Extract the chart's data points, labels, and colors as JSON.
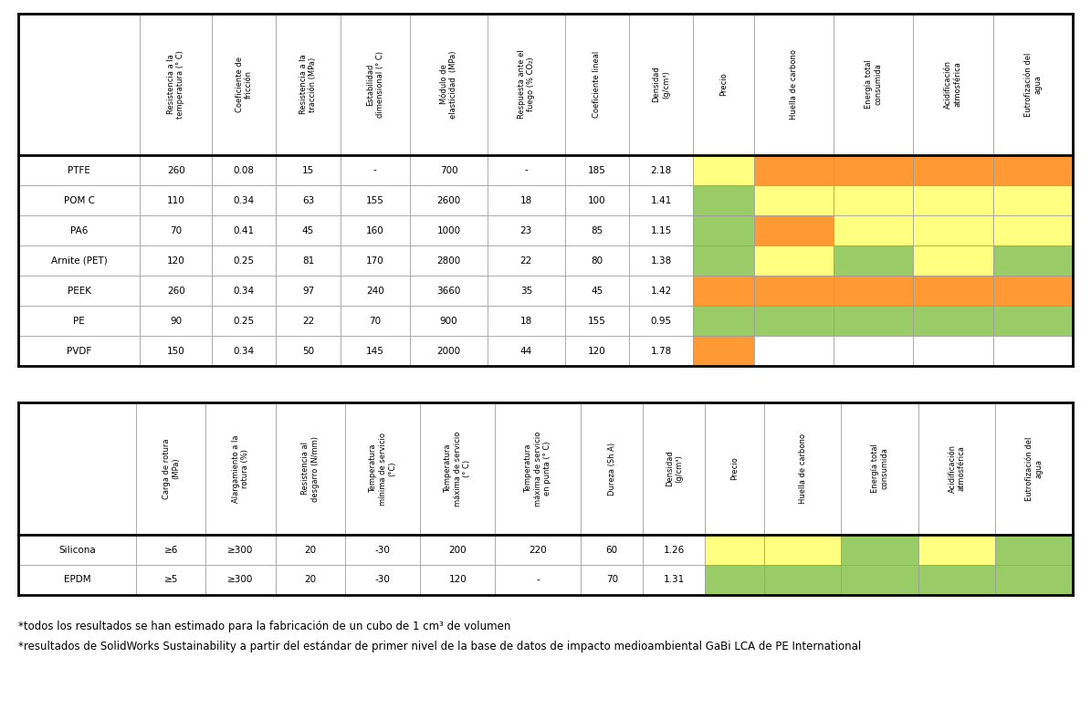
{
  "table1_headers": [
    "Resistencia a la\ntemperatura (° C)",
    "Coeficiente de\nfricción",
    "Resistencia a la\ntracción (MPa)",
    "Estabilidad\ndimensional (° C)",
    "Módulo de\nelasticidad  (MPa)",
    "Respuesta ante el\nfuego (% CO₂)",
    "Coeficiente lineal",
    "Densidad\n(g/cm³)",
    "Precio",
    "Huella de carbono",
    "Energía total\nconsumida",
    "Acidificación\natmosférica",
    "Eutrofización del\nagua"
  ],
  "table1_rows": [
    [
      "PTFE",
      "260",
      "0.08",
      "15",
      "-",
      "700",
      "-",
      "185",
      "2.18"
    ],
    [
      "POM C",
      "110",
      "0.34",
      "63",
      "155",
      "2600",
      "18",
      "100",
      "1.41"
    ],
    [
      "PA6",
      "70",
      "0.41",
      "45",
      "160",
      "1000",
      "23",
      "85",
      "1.15"
    ],
    [
      "Arnite (PET)",
      "120",
      "0.25",
      "81",
      "170",
      "2800",
      "22",
      "80",
      "1.38"
    ],
    [
      "PEEK",
      "260",
      "0.34",
      "97",
      "240",
      "3660",
      "35",
      "45",
      "1.42"
    ],
    [
      "PE",
      "90",
      "0.25",
      "22",
      "70",
      "900",
      "18",
      "155",
      "0.95"
    ],
    [
      "PVDF",
      "150",
      "0.34",
      "50",
      "145",
      "2000",
      "44",
      "120",
      "1.78"
    ]
  ],
  "table1_colors": {
    "PTFE": [
      "#FFFF80",
      "#FF9933",
      "#FF9933",
      "#FF9933",
      "#FF9933"
    ],
    "POM C": [
      "#99CC66",
      "#FFFF80",
      "#FFFF80",
      "#FFFF80",
      "#FFFF80"
    ],
    "PA6": [
      "#99CC66",
      "#FF9933",
      "#FFFF80",
      "#FFFF80",
      "#FFFF80"
    ],
    "Arnite (PET)": [
      "#99CC66",
      "#FFFF80",
      "#99CC66",
      "#FFFF80",
      "#99CC66"
    ],
    "PEEK": [
      "#FF9933",
      "#FF9933",
      "#FF9933",
      "#FF9933",
      "#FF9933"
    ],
    "PE": [
      "#99CC66",
      "#99CC66",
      "#99CC66",
      "#99CC66",
      "#99CC66"
    ],
    "PVDF": [
      "#FF9933",
      "#FFFFFF",
      "#FFFFFF",
      "#FFFFFF",
      "#FFFFFF"
    ]
  },
  "table2_headers": [
    "Carga de rotura\n(MPa)",
    "Alargamiento a la\nrotura (%)",
    "Resistencia al\ndesgarro (N/mm)",
    "Temperatura\nmínima de servicio\n(°C)",
    "Temperatura\nmáxima de servicio\n(° C)",
    "Temperatura\nmáxima de servicio\nen punta (° C)",
    "Dureza (Sh A)",
    "Densidad\n(g/cm³)",
    "Precio",
    "Huella de carbono",
    "Energía total\nconsumida",
    "Acidificación\natmosférica",
    "Eutrofización del\nagua"
  ],
  "table2_rows": [
    [
      "Silicona",
      "≥6",
      "≥300",
      "20",
      "-30",
      "200",
      "220",
      "60",
      "1.26"
    ],
    [
      "EPDM",
      "≥5",
      "≥300",
      "20",
      "-30",
      "120",
      "-",
      "70",
      "1.31"
    ]
  ],
  "table2_colors": {
    "Silicona": [
      "#FFFF80",
      "#FFFF80",
      "#99CC66",
      "#FFFF80",
      "#99CC66"
    ],
    "EPDM": [
      "#99CC66",
      "#99CC66",
      "#99CC66",
      "#99CC66",
      "#99CC66"
    ]
  },
  "footnote1": "*todos los resultados se han estimado para la fabricación de un cubo de 1 cm³ de volumen",
  "footnote2": "*resultados de SolidWorks Sustainability a partir del estándar de primer nivel de la base de datos de impacto medioambiental GaBi LCA de PE International"
}
